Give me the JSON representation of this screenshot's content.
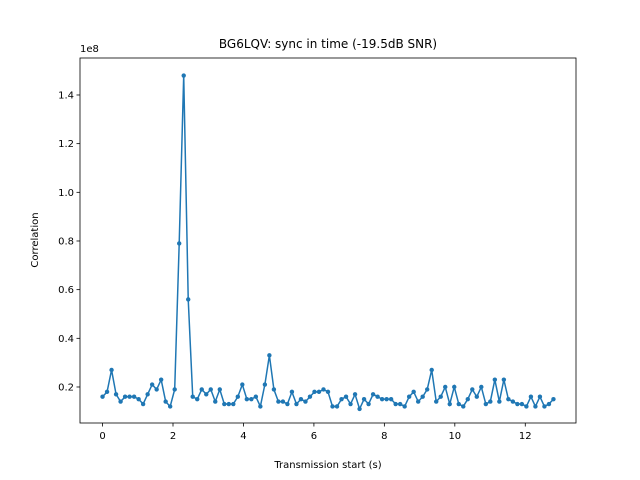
{
  "chart_data": {
    "type": "line",
    "title": "BG6LQV: sync in time (-19.5dB SNR)",
    "xlabel": "Transmission start (s)",
    "ylabel": "Correlation",
    "offset_label": "1e8",
    "x": [
      0,
      0.128,
      0.256,
      0.384,
      0.512,
      0.64,
      0.768,
      0.896,
      1.024,
      1.152,
      1.28,
      1.408,
      1.536,
      1.664,
      1.792,
      1.92,
      2.048,
      2.176,
      2.304,
      2.432,
      2.56,
      2.688,
      2.816,
      2.944,
      3.072,
      3.2,
      3.328,
      3.456,
      3.584,
      3.712,
      3.84,
      3.968,
      4.096,
      4.224,
      4.352,
      4.48,
      4.608,
      4.736,
      4.864,
      4.992,
      5.12,
      5.248,
      5.376,
      5.504,
      5.632,
      5.76,
      5.888,
      6.016,
      6.144,
      6.272,
      6.4,
      6.528,
      6.656,
      6.784,
      6.912,
      7.04,
      7.168,
      7.296,
      7.424,
      7.552,
      7.68,
      7.808,
      7.936,
      8.064,
      8.192,
      8.32,
      8.448,
      8.576,
      8.704,
      8.832,
      8.96,
      9.088,
      9.216,
      9.344,
      9.472,
      9.6,
      9.728,
      9.856,
      9.984,
      10.112,
      10.24,
      10.368,
      10.496,
      10.624,
      10.752,
      10.88,
      11.008,
      11.136,
      11.264,
      11.392,
      11.52,
      11.648,
      11.776,
      11.904,
      12.032,
      12.16,
      12.288,
      12.416,
      12.544,
      12.672,
      12.8
    ],
    "series": [
      {
        "name": "Correlation",
        "color": "#1f77b4",
        "values": [
          0.16,
          0.18,
          0.27,
          0.17,
          0.14,
          0.16,
          0.16,
          0.16,
          0.15,
          0.13,
          0.17,
          0.21,
          0.19,
          0.23,
          0.14,
          0.12,
          0.19,
          0.79,
          1.48,
          0.56,
          0.16,
          0.15,
          0.19,
          0.17,
          0.19,
          0.14,
          0.19,
          0.13,
          0.13,
          0.13,
          0.16,
          0.21,
          0.15,
          0.15,
          0.16,
          0.12,
          0.21,
          0.33,
          0.19,
          0.14,
          0.14,
          0.13,
          0.18,
          0.13,
          0.15,
          0.14,
          0.16,
          0.18,
          0.18,
          0.19,
          0.18,
          0.12,
          0.12,
          0.15,
          0.16,
          0.13,
          0.17,
          0.11,
          0.15,
          0.13,
          0.17,
          0.16,
          0.15,
          0.15,
          0.15,
          0.13,
          0.13,
          0.12,
          0.16,
          0.18,
          0.14,
          0.16,
          0.19,
          0.27,
          0.14,
          0.16,
          0.2,
          0.13,
          0.2,
          0.13,
          0.12,
          0.15,
          0.19,
          0.16,
          0.2,
          0.13,
          0.14,
          0.23,
          0.14,
          0.23,
          0.15,
          0.14,
          0.13,
          0.13,
          0.12,
          0.16,
          0.12,
          0.16,
          0.12,
          0.13,
          0.15
        ]
      }
    ],
    "xlim": [
      -0.64,
      13.44
    ],
    "ylim": [
      0.052,
      1.552
    ],
    "xticks": [
      0,
      2,
      4,
      6,
      8,
      10,
      12
    ],
    "yticks": [
      0.2,
      0.4,
      0.6,
      0.8,
      {
        "value": 1,
        "label": "1.0"
      },
      1.2,
      1.4
    ]
  }
}
